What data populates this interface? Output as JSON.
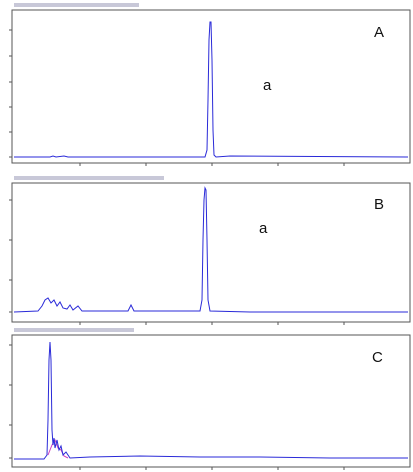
{
  "panels": [
    {
      "label": "A",
      "sublabel": "a"
    },
    {
      "label": "B",
      "sublabel": "a"
    },
    {
      "label": "C"
    }
  ]
}
